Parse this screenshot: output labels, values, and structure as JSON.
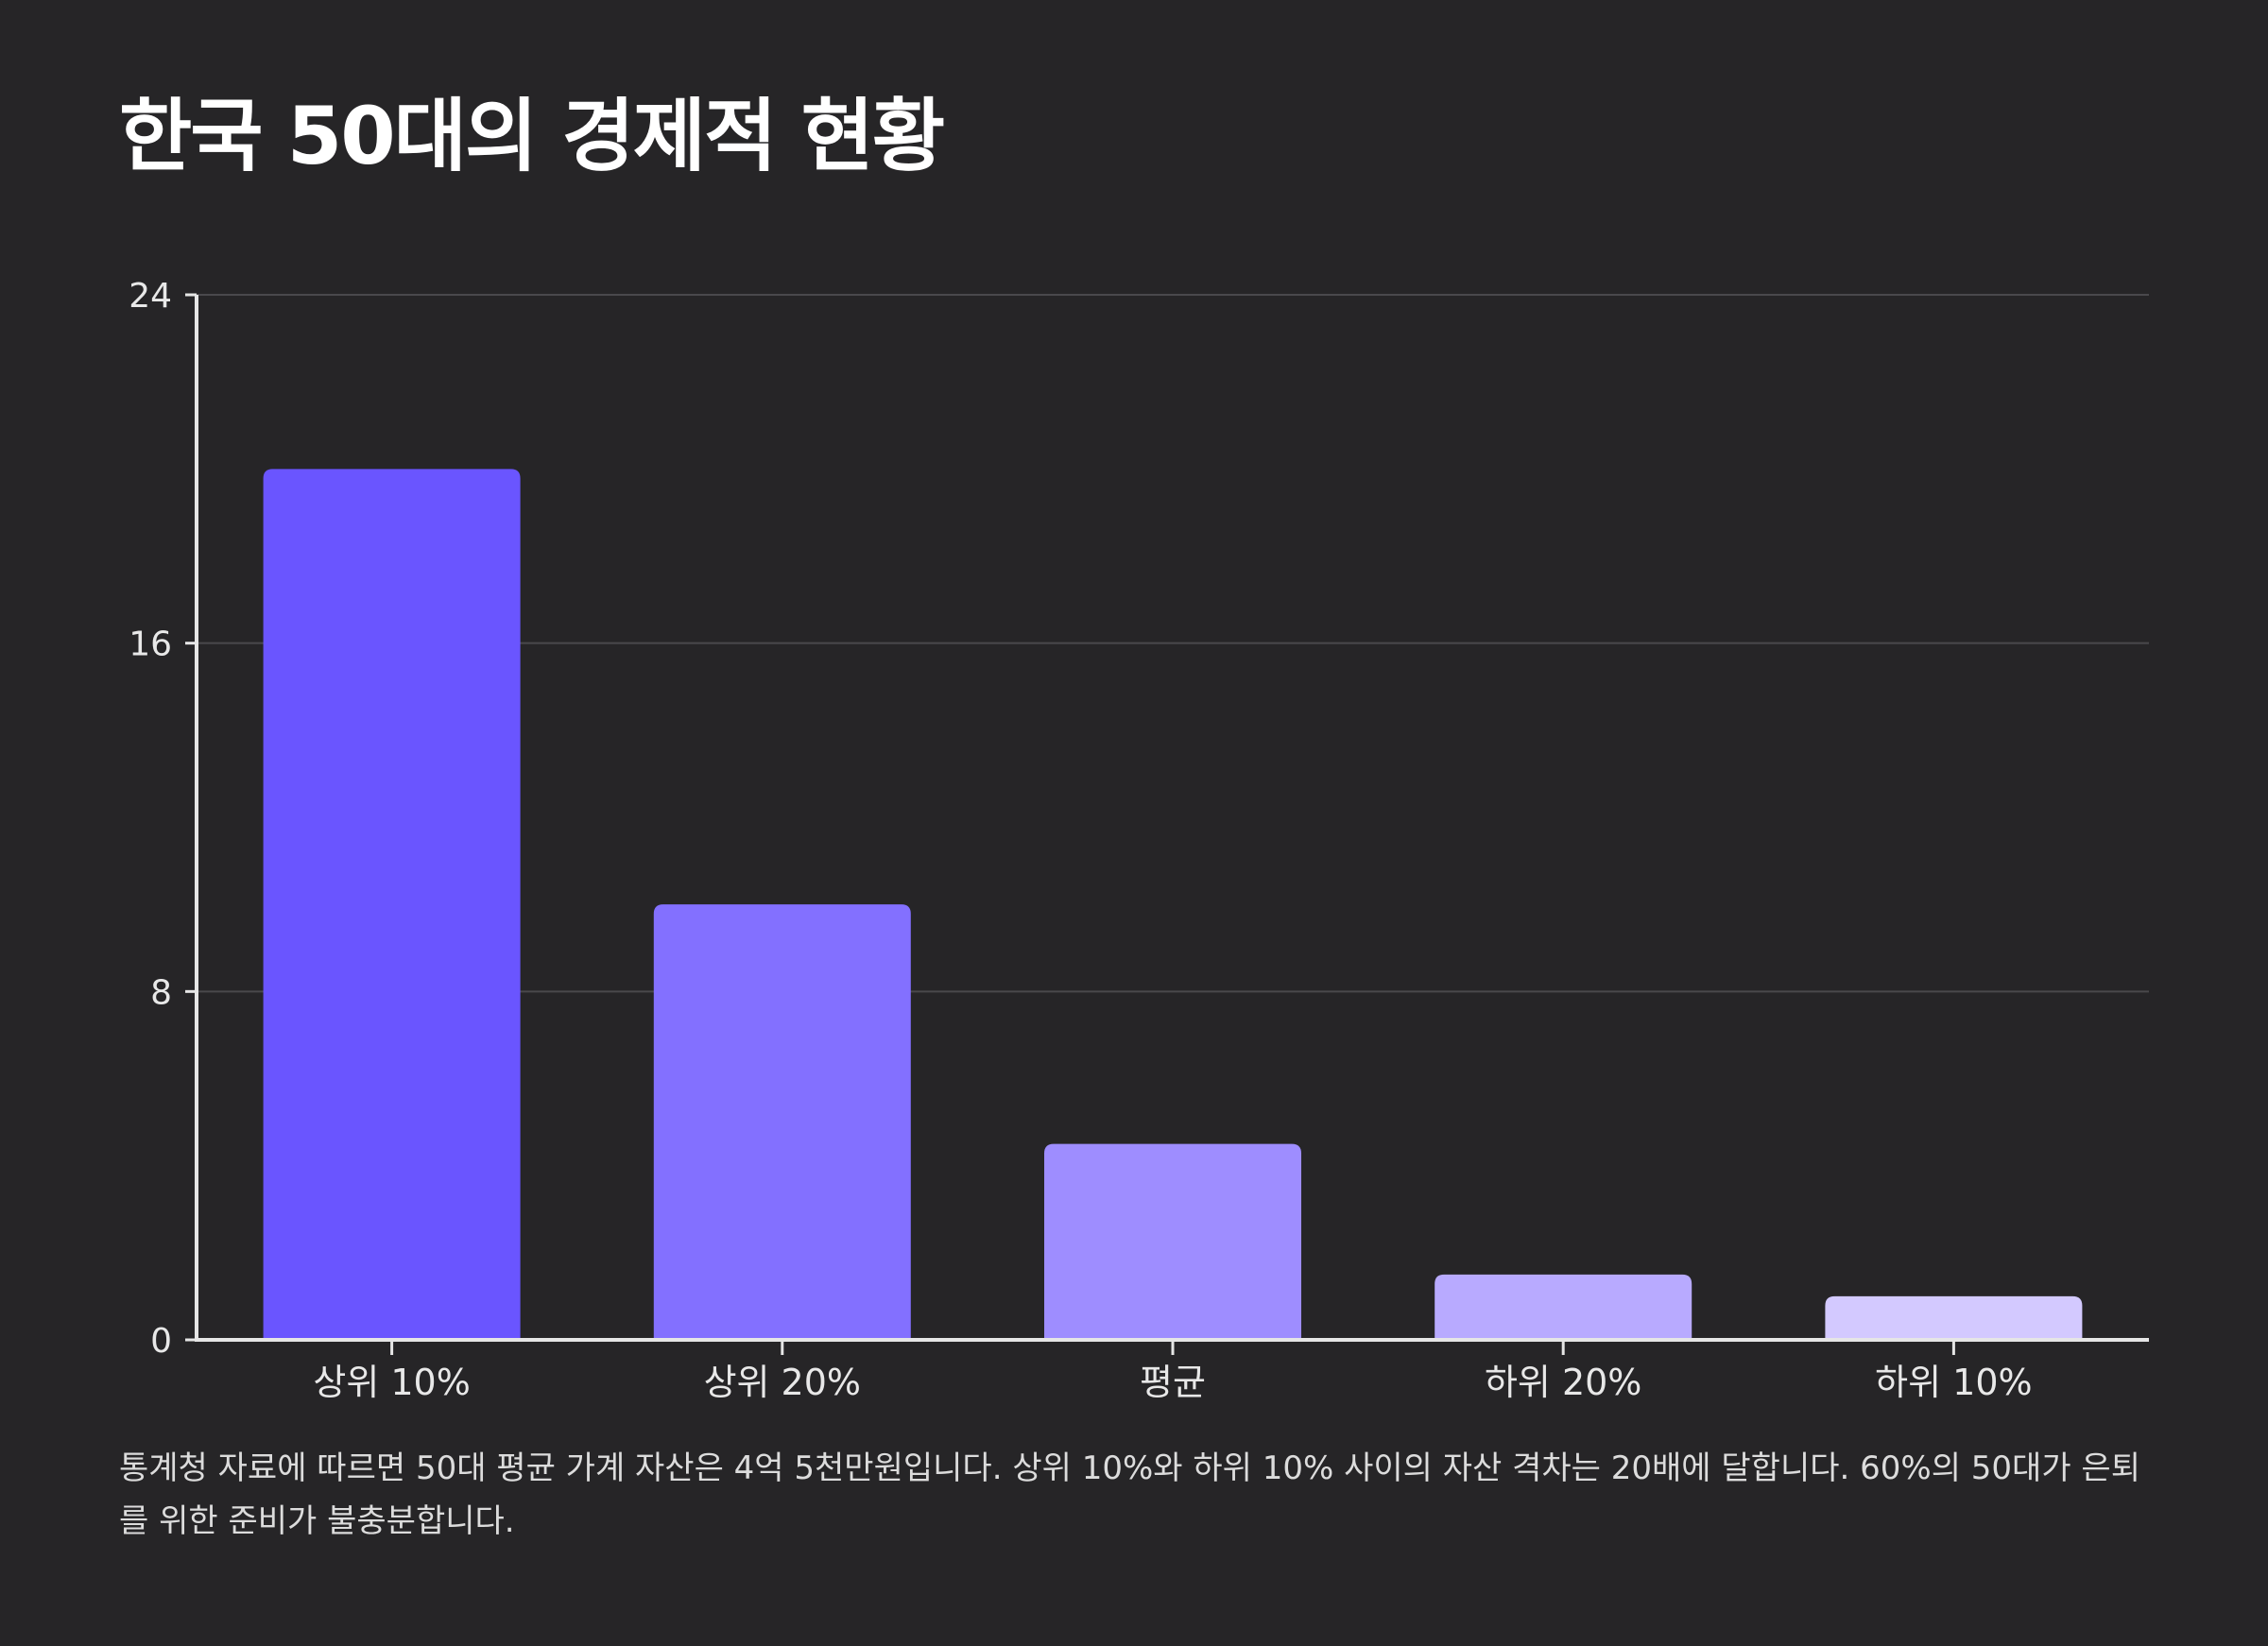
{
  "title": "한국 50대의 경제적 현황",
  "caption": "통계청 자료에 따르면 50대 평균 가계 자산은 4억 5천만원입니다. 상위 10%와 하위 10% 사이의 자산 격차는 20배에 달합니다. 60%의 50대가 은퇴를 위한 준비가 불충분합니다.",
  "colors": {
    "background": "#262527",
    "gridline": "#4a494c",
    "axis": "#e6e6e6",
    "bars": [
      "#6a55ff",
      "#8370ff",
      "#9e8dff",
      "#b8aaff",
      "#d3c9ff"
    ]
  },
  "chart_data": {
    "type": "bar",
    "title": "한국 50대의 경제적 현황",
    "xlabel": "",
    "ylabel": "",
    "categories": [
      "상위 10%",
      "상위 20%",
      "평균",
      "하위 20%",
      "하위 10%"
    ],
    "values": [
      20,
      10,
      4.5,
      1.5,
      1
    ],
    "ylim": [
      0,
      24
    ],
    "yticks": [
      0,
      8,
      16,
      24
    ],
    "grid": true,
    "legend": "none"
  }
}
